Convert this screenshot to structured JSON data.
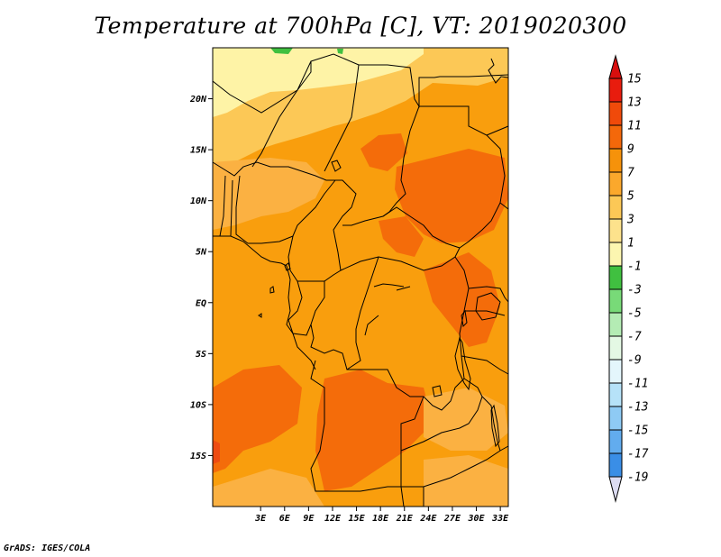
{
  "title": "Temperature at 700hPa [C], VT: 2019020300",
  "credit": "GrADS: IGES/COLA",
  "map": {
    "lon_range_deg_east": [
      -3,
      34
    ],
    "lat_range_deg": [
      -20,
      25
    ],
    "lat_ticks": [
      {
        "value": 20,
        "label": "20N"
      },
      {
        "value": 15,
        "label": "15N"
      },
      {
        "value": 10,
        "label": "10N"
      },
      {
        "value": 5,
        "label": "5N"
      },
      {
        "value": 0,
        "label": "EQ"
      },
      {
        "value": -5,
        "label": "5S"
      },
      {
        "value": -10,
        "label": "10S"
      },
      {
        "value": -15,
        "label": "15S"
      }
    ],
    "lon_ticks": [
      {
        "value": 3,
        "label": "3E"
      },
      {
        "value": 6,
        "label": "6E"
      },
      {
        "value": 9,
        "label": "9E"
      },
      {
        "value": 12,
        "label": "12E"
      },
      {
        "value": 15,
        "label": "15E"
      },
      {
        "value": 18,
        "label": "18E"
      },
      {
        "value": 21,
        "label": "21E"
      },
      {
        "value": 24,
        "label": "24E"
      },
      {
        "value": 27,
        "label": "27E"
      },
      {
        "value": 30,
        "label": "30E"
      },
      {
        "value": 33,
        "label": "33E"
      }
    ]
  },
  "colorbar": {
    "labels": [
      "15",
      "13",
      "11",
      "9",
      "7",
      "5",
      "3",
      "1",
      "-1",
      "-3",
      "-5",
      "-7",
      "-9",
      "-11",
      "-13",
      "-15",
      "-17",
      "-19"
    ],
    "colors_top_to_bottom": [
      "#e81c0e",
      "#f04a0a",
      "#f4680a",
      "#f6920a",
      "#fba82c",
      "#fcc856",
      "#fde28c",
      "#fcf6b0",
      "#40c040",
      "#78da78",
      "#b4ecb4",
      "#e4f8e4",
      "#e4f6fc",
      "#b6e2f8",
      "#8ecaf4",
      "#62acee",
      "#3a8ee6",
      "#1e70dc",
      "#1252c8",
      "#0a36aa",
      "#050e6c"
    ],
    "top_arrow_color": "#d80e0e",
    "bottom_arrow_color": "#dcdcf2"
  },
  "field_colors": {
    "light_yellow": "#fef3a6",
    "pale_yellow": "#fde08c",
    "yellow_orange": "#fcc856",
    "light_orange": "#fbb142",
    "orange": "#f99e0d",
    "dark_orange": "#f46c0a",
    "red_orange": "#ee4b12",
    "green": "#40c040"
  },
  "region_colors": [
    "#fef3a6",
    "#fde08c",
    "#fcc856",
    "#fbb142",
    "#f99e0d",
    "#f46c0a",
    "#ee4b12",
    "#40c040"
  ]
}
